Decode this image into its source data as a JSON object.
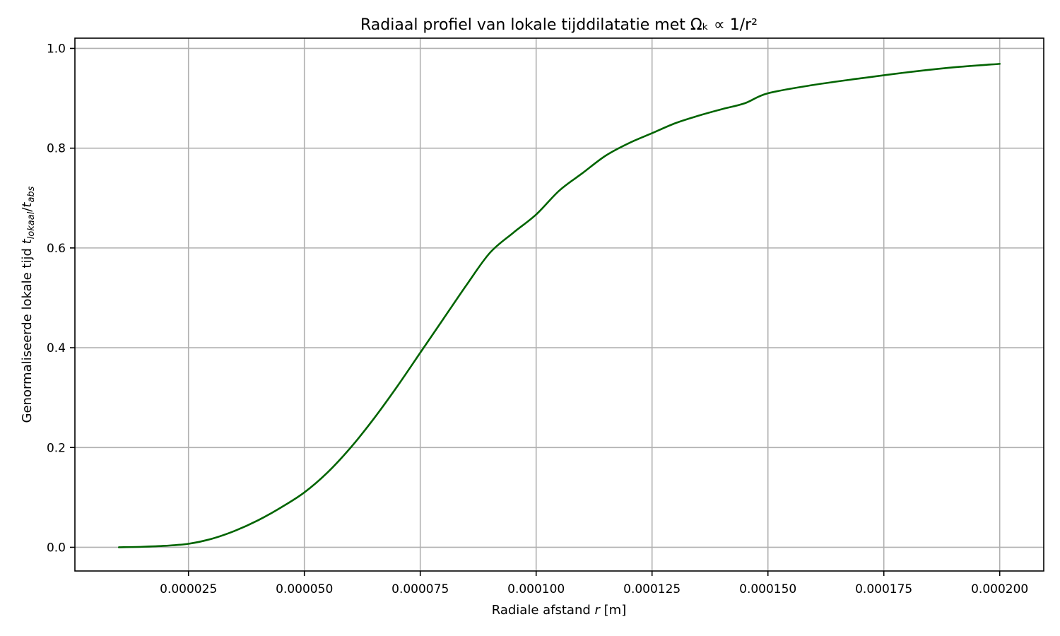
{
  "chart_data": {
    "type": "line",
    "title": "Radiaal profiel van lokale tijddilatatie met Ωₖ ∝ 1/r²",
    "xlabel": {
      "prefix": "Radiale afstand ",
      "var": "r",
      "suffix": " [m]"
    },
    "ylabel": {
      "prefix": "Genormaliseerde lokale tijd ",
      "num": "t",
      "num_sub": "lokaal",
      "slash": "/",
      "den": "t",
      "den_sub": "abs"
    },
    "xlim": [
      5e-07,
      0.0002095
    ],
    "ylim": [
      -0.0475,
      1.0205
    ],
    "xticks": [
      2.5e-05,
      5e-05,
      7.5e-05,
      0.0001,
      0.000125,
      0.00015,
      0.000175,
      0.0002
    ],
    "xtick_labels": [
      "0.000025",
      "0.000050",
      "0.000075",
      "0.000100",
      "0.000125",
      "0.000150",
      "0.000175",
      "0.000200"
    ],
    "yticks": [
      0.0,
      0.2,
      0.4,
      0.6,
      0.8,
      1.0
    ],
    "ytick_labels": [
      "0.0",
      "0.2",
      "0.4",
      "0.6",
      "0.8",
      "1.0"
    ],
    "grid": true,
    "series": [
      {
        "color": "#006400",
        "x": [
          1e-05,
          1.5e-05,
          2e-05,
          2.5e-05,
          3e-05,
          3.5e-05,
          4e-05,
          4.5e-05,
          5e-05,
          5.5e-05,
          6e-05,
          6.5e-05,
          7e-05,
          7.5e-05,
          8e-05,
          8.5e-05,
          9e-05,
          9.5e-05,
          0.0001,
          0.000105,
          0.00011,
          0.000115,
          0.00012,
          0.000125,
          0.00013,
          0.000135,
          0.00014,
          0.000145,
          0.00015,
          0.00016,
          0.00017,
          0.00018,
          0.00019,
          0.0002
        ],
        "y": [
          0.0,
          0.001,
          0.003,
          0.007,
          0.017,
          0.033,
          0.054,
          0.08,
          0.11,
          0.15,
          0.2,
          0.258,
          0.322,
          0.39,
          0.458,
          0.526,
          0.59,
          0.63,
          0.667,
          0.715,
          0.75,
          0.785,
          0.81,
          0.83,
          0.85,
          0.865,
          0.878,
          0.89,
          0.91,
          0.927,
          0.94,
          0.952,
          0.962,
          0.969
        ]
      }
    ]
  }
}
